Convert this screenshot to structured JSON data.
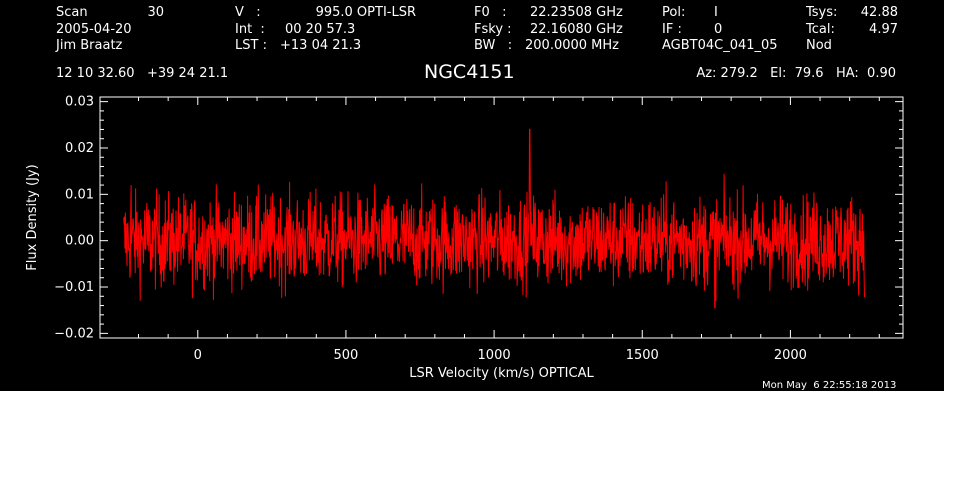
{
  "header": {
    "scan_label": "Scan",
    "scan_number": "30",
    "date": "2005-04-20",
    "observer": "Jim Braatz",
    "v_label": "V   :",
    "v_value": "995.0 OPTI-LSR",
    "int_label": "Int  :",
    "int_value": "00 20 57.3",
    "lst_label": "LST :",
    "lst_value": "+13 04 21.3",
    "f0_label": "F0   :",
    "f0_value": "22.23508 GHz",
    "fsky_label": "Fsky :",
    "fsky_value": "22.16080 GHz",
    "bw_label": "BW   :",
    "bw_value": "200.0000 MHz",
    "pol_label": "Pol:",
    "pol_value": "I",
    "if_label": "IF :",
    "if_value": "0",
    "project": "AGBT04C_041_05",
    "tsys_label": "Tsys:",
    "tsys_value": "42.88",
    "tcal_label": "Tcal:",
    "tcal_value": "4.97",
    "proc": "Nod",
    "coords": "12 10 32.60   +39 24 21.1",
    "source": "NGC4151",
    "az_el_ha": "Az: 279.2   El:  79.6   HA:  0.90"
  },
  "timestamp": "Mon May  6 22:55:18 2013",
  "colors": {
    "background": "#000000",
    "axes": "#ffffff",
    "series": "#ff0000"
  },
  "chart_data": {
    "type": "line",
    "xlabel": "LSR Velocity (km/s) OPTICAL",
    "ylabel": "Flux Density (Jy)",
    "xlim": [
      -330,
      2380
    ],
    "ylim": [
      -0.021,
      0.031
    ],
    "xticks": [
      0,
      500,
      1000,
      1500,
      2000
    ],
    "yticks": [
      -0.02,
      -0.01,
      0.0,
      0.01,
      0.02,
      0.03
    ],
    "ytick_labels": [
      "−0.02",
      "−0.01",
      "0.00",
      "0.01",
      "0.02",
      "0.03"
    ],
    "series": [
      {
        "x_start": -250,
        "x_end": 2250,
        "baseline": 0.0,
        "noise_rms": 0.005,
        "peaks": [
          {
            "x": 1120,
            "y": 0.024
          },
          {
            "x": -225,
            "y": 0.012
          },
          {
            "x": 1745,
            "y": -0.0145
          }
        ]
      }
    ]
  }
}
